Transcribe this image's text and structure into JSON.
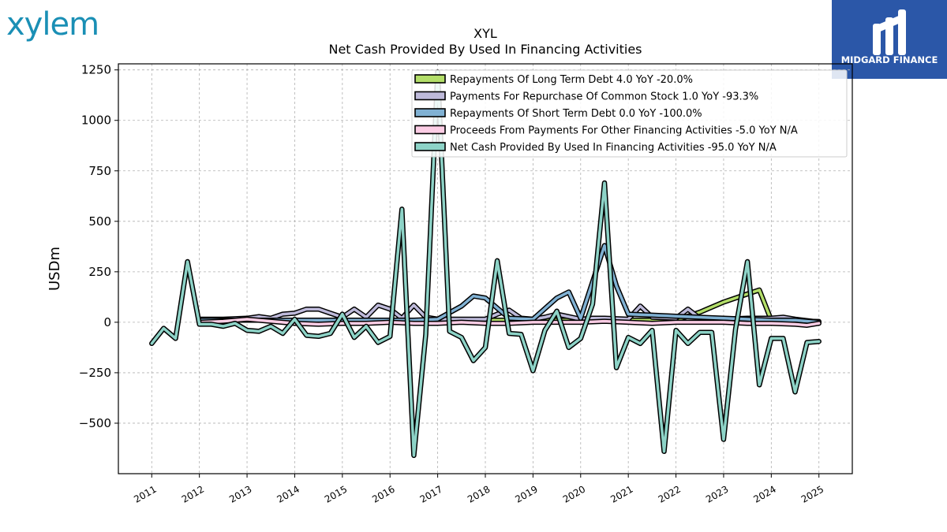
{
  "brand": {
    "logo_text": "xylem",
    "badge_text": "MIDGARD FINANCE"
  },
  "chart_data": {
    "type": "line",
    "title": "XYL",
    "subtitle": "Net Cash Provided By Used In Financing Activities",
    "ylabel": "USDm",
    "xlabel": "",
    "ylim": [
      -750,
      1280
    ],
    "xlim": [
      2010.3,
      2025.7
    ],
    "yticks": [
      -500,
      -250,
      0,
      250,
      500,
      750,
      1000,
      1250
    ],
    "ytick_labels": [
      "−500",
      "−250",
      "0",
      "250",
      "500",
      "750",
      "1000",
      "1250"
    ],
    "xticks": [
      2011,
      2012,
      2013,
      2014,
      2015,
      2016,
      2017,
      2018,
      2019,
      2020,
      2021,
      2022,
      2023,
      2024,
      2025
    ],
    "xtick_labels": [
      "2011",
      "2012",
      "2013",
      "2014",
      "2015",
      "2016",
      "2017",
      "2018",
      "2019",
      "2020",
      "2021",
      "2022",
      "2023",
      "2024",
      "2025"
    ],
    "grid": true,
    "legend_position": "top-right",
    "series": [
      {
        "name": "Repayments Of Long Term Debt  4.0 YoY -20.0%",
        "color": "#b3de69",
        "x": [
          2012.0,
          2012.5,
          2013.0,
          2013.5,
          2014.0,
          2014.5,
          2015.0,
          2015.5,
          2016.0,
          2016.5,
          2017.0,
          2017.5,
          2018.0,
          2018.5,
          2019.0,
          2019.5,
          2020.0,
          2020.5,
          2021.0,
          2021.5,
          2022.0,
          2022.5,
          2023.0,
          2023.5,
          2023.75,
          2024.0,
          2024.5,
          2025.0
        ],
        "values": [
          10,
          10,
          10,
          10,
          10,
          10,
          10,
          10,
          10,
          10,
          10,
          10,
          10,
          10,
          10,
          10,
          10,
          10,
          10,
          10,
          10,
          50,
          100,
          140,
          160,
          10,
          5,
          4
        ]
      },
      {
        "name": "Payments For Repurchase Of Common Stock  1.0 YoY -93.3%",
        "color": "#bebada",
        "x": [
          2012.0,
          2012.5,
          2013.0,
          2013.25,
          2013.5,
          2013.75,
          2014.0,
          2014.25,
          2014.5,
          2014.75,
          2015.0,
          2015.25,
          2015.5,
          2015.75,
          2016.0,
          2016.25,
          2016.5,
          2016.75,
          2017.0,
          2017.5,
          2018.0,
          2018.25,
          2018.5,
          2018.75,
          2019.0,
          2019.25,
          2019.5,
          2020.0,
          2020.25,
          2020.5,
          2021.0,
          2021.25,
          2021.5,
          2022.0,
          2022.25,
          2022.5,
          2023.0,
          2023.5,
          2024.0,
          2024.25,
          2024.5,
          2025.0
        ],
        "values": [
          15,
          15,
          20,
          28,
          20,
          40,
          45,
          65,
          65,
          45,
          25,
          65,
          25,
          85,
          65,
          20,
          85,
          25,
          15,
          15,
          15,
          40,
          60,
          20,
          15,
          25,
          40,
          15,
          20,
          20,
          15,
          80,
          25,
          20,
          65,
          20,
          15,
          20,
          20,
          25,
          15,
          1
        ]
      },
      {
        "name": "Repayments Of Short Term Debt  0.0 YoY -100.0%",
        "color": "#80b1d3",
        "x": [
          2012.0,
          2013.0,
          2014.0,
          2015.0,
          2016.0,
          2016.5,
          2017.0,
          2017.5,
          2017.75,
          2018.0,
          2018.5,
          2019.0,
          2019.5,
          2019.75,
          2020.0,
          2020.5,
          2020.75,
          2021.0,
          2021.5,
          2022.0,
          2022.5,
          2023.0,
          2023.5,
          2024.0,
          2024.5,
          2025.0
        ],
        "values": [
          10,
          10,
          10,
          10,
          10,
          10,
          15,
          80,
          130,
          120,
          20,
          15,
          120,
          150,
          20,
          380,
          180,
          40,
          35,
          30,
          25,
          20,
          15,
          10,
          10,
          0
        ]
      },
      {
        "name": "Proceeds From Payments For Other Financing Activities  -5.0 YoY N/A",
        "color": "#fccde5",
        "x": [
          2012.0,
          2012.5,
          2013.0,
          2013.5,
          2014.0,
          2014.5,
          2015.0,
          2015.5,
          2016.0,
          2016.5,
          2017.0,
          2017.5,
          2018.0,
          2018.5,
          2019.0,
          2019.5,
          2020.0,
          2020.5,
          2021.0,
          2021.5,
          2022.0,
          2022.5,
          2023.0,
          2023.5,
          2024.0,
          2024.5,
          2024.75,
          2025.0
        ],
        "values": [
          0,
          5,
          15,
          5,
          -5,
          -10,
          -5,
          -5,
          0,
          -5,
          -5,
          0,
          -5,
          -5,
          0,
          0,
          0,
          5,
          0,
          -5,
          0,
          0,
          0,
          -5,
          -5,
          -10,
          -15,
          -5
        ]
      },
      {
        "name": "Net Cash Provided By Used In Financing Activities  -95.0 YoY N/A",
        "color": "#8dd3c7",
        "x": [
          2011.0,
          2011.25,
          2011.5,
          2011.75,
          2012.0,
          2012.25,
          2012.5,
          2012.75,
          2013.0,
          2013.25,
          2013.5,
          2013.75,
          2014.0,
          2014.25,
          2014.5,
          2014.75,
          2015.0,
          2015.25,
          2015.5,
          2015.75,
          2016.0,
          2016.25,
          2016.5,
          2016.75,
          2017.0,
          2017.25,
          2017.5,
          2017.75,
          2018.0,
          2018.25,
          2018.5,
          2018.75,
          2019.0,
          2019.25,
          2019.5,
          2019.75,
          2020.0,
          2020.25,
          2020.5,
          2020.75,
          2021.0,
          2021.25,
          2021.5,
          2021.75,
          2022.0,
          2022.25,
          2022.5,
          2022.75,
          2023.0,
          2023.25,
          2023.5,
          2023.75,
          2024.0,
          2024.25,
          2024.5,
          2024.75,
          2025.0
        ],
        "values": [
          -105,
          -30,
          -80,
          300,
          -10,
          -10,
          -20,
          -5,
          -40,
          -45,
          -20,
          -55,
          15,
          -65,
          -70,
          -55,
          40,
          -75,
          -20,
          -100,
          -70,
          560,
          -660,
          -60,
          1240,
          -45,
          -75,
          -190,
          -125,
          305,
          -55,
          -60,
          -240,
          -40,
          55,
          -125,
          -80,
          90,
          690,
          -225,
          -75,
          -105,
          -40,
          -640,
          -40,
          -105,
          -50,
          -50,
          -580,
          -35,
          300,
          -310,
          -80,
          -80,
          -345,
          -100,
          -95
        ]
      }
    ]
  }
}
